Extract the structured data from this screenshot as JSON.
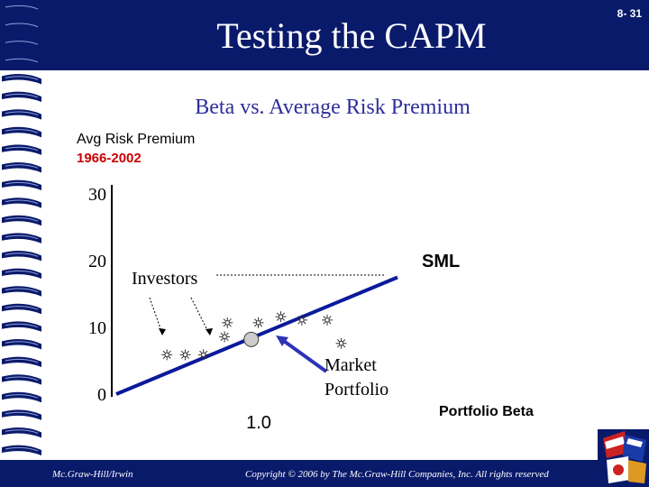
{
  "slide": {
    "title": "Testing the CAPM",
    "number": "8- 31",
    "footer_left": "Mc.Graw-Hill/Irwin",
    "footer_right": "Copyright © 2006 by The Mc.Graw-Hill Companies, Inc. All rights reserved"
  },
  "chart_data": {
    "type": "scatter",
    "title": "Beta vs. Average Risk Premium",
    "ylabel": "Avg Risk Premium",
    "ylabel_sub": "1966-2002",
    "xlabel": "Portfolio Beta",
    "yticks": [
      "0",
      "10",
      "20",
      "30"
    ],
    "ytick_values": [
      0,
      10,
      20,
      30
    ],
    "xtick_label": "1.0",
    "xtick_value": 1.0,
    "xlim": [
      0,
      2.0
    ],
    "ylim": [
      0,
      30
    ],
    "sml": {
      "label": "SML",
      "x": [
        0,
        2.0
      ],
      "y": [
        0,
        17.5
      ]
    },
    "points": [
      {
        "x": 0.36,
        "y": 5.9
      },
      {
        "x": 0.49,
        "y": 5.9
      },
      {
        "x": 0.62,
        "y": 5.9
      },
      {
        "x": 0.77,
        "y": 8.6
      },
      {
        "x": 0.79,
        "y": 10.7
      },
      {
        "x": 1.01,
        "y": 10.7
      },
      {
        "x": 1.17,
        "y": 11.6
      },
      {
        "x": 1.32,
        "y": 11.1
      },
      {
        "x": 1.5,
        "y": 11.1
      },
      {
        "x": 1.6,
        "y": 7.6
      }
    ],
    "market_portfolio": {
      "label_line1": "Market",
      "label_line2": "Portfolio",
      "x": 0.96,
      "y": 8.2
    },
    "investors_label": "Investors",
    "colors": {
      "sml": "#0a1a9a",
      "points": "#333333",
      "arrow": "#2e33b8",
      "ylabel_sub": "#cc0000",
      "title": "#2e2e9c",
      "header": "#0a1a6b"
    }
  }
}
